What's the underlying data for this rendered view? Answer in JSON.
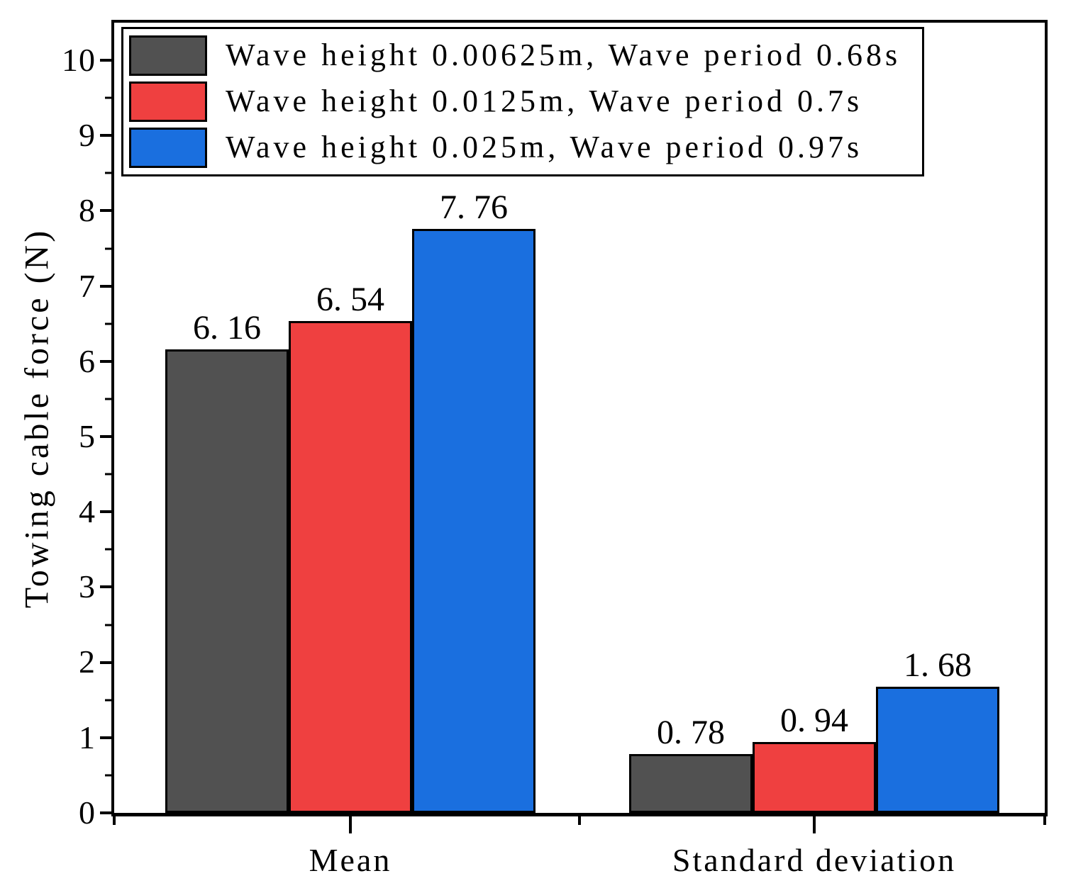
{
  "chart_data": {
    "type": "bar",
    "title": "",
    "xlabel": "",
    "ylabel": "Towing cable force (N)",
    "categories": [
      "Mean",
      "Standard deviation"
    ],
    "series": [
      {
        "name": "Wave height 0.00625m, Wave period 0.68s",
        "color": "#515151",
        "values": [
          6.16,
          0.78
        ]
      },
      {
        "name": "Wave height 0.0125m, Wave period 0.7s",
        "color": "#EF4040",
        "values": [
          6.54,
          0.94
        ]
      },
      {
        "name": "Wave height 0.025m, Wave period 0.97s",
        "color": "#1A6FDF",
        "values": [
          7.76,
          1.68
        ]
      }
    ],
    "bar_value_labels": {
      "Mean": [
        "6.16",
        "6.54",
        "7.76"
      ],
      "Standard deviation": [
        "0.78",
        "0.94",
        "1.68"
      ]
    },
    "ylim": [
      0,
      10.5
    ],
    "y_major_ticks": [
      0,
      1,
      2,
      3,
      4,
      5,
      6,
      7,
      8,
      9,
      10
    ],
    "y_minor_tick_step": 0.5,
    "grid": false,
    "legend_position": "upper-left",
    "axis_color": "#000000",
    "background": "#ffffff"
  }
}
